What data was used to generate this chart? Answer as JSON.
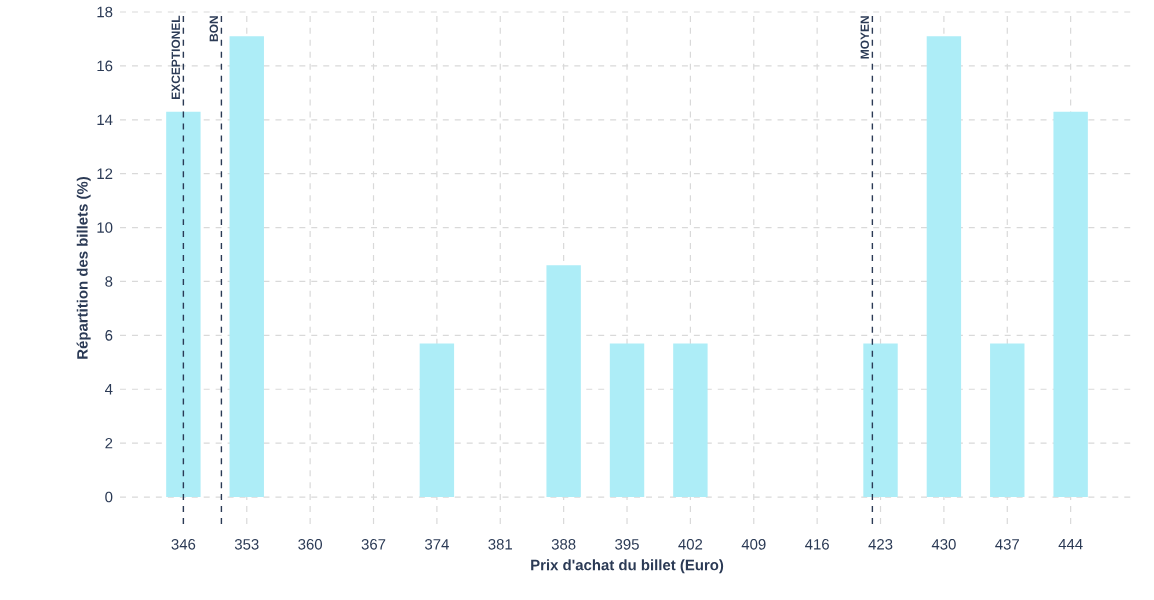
{
  "chart_data": {
    "type": "bar",
    "xlabel": "Prix d'achat du billet (Euro)",
    "ylabel": "Répartition des billets (%)",
    "x": [
      346,
      353,
      360,
      367,
      374,
      381,
      388,
      395,
      402,
      409,
      416,
      423,
      430,
      437,
      444
    ],
    "values": [
      14.3,
      17.1,
      0,
      0,
      5.7,
      0,
      8.6,
      5.7,
      5.7,
      0,
      0,
      5.7,
      17.1,
      5.7,
      14.3
    ],
    "color": "#adedf7",
    "xlim": [
      339,
      451
    ],
    "ylim": [
      -1,
      18
    ],
    "xticks": [
      346,
      353,
      360,
      367,
      374,
      381,
      388,
      395,
      402,
      409,
      416,
      423,
      430,
      437,
      444
    ],
    "yticks": [
      0,
      2,
      4,
      6,
      8,
      10,
      12,
      14,
      16,
      18
    ],
    "grid": true,
    "ref_lines": [
      {
        "axis": "x",
        "value": 346,
        "label": "EXCEPTIONEL",
        "color": "#2b3a55",
        "line_style": "dashed"
      },
      {
        "axis": "x",
        "value": 350.2,
        "label": "BON",
        "color": "#2b3a55",
        "line_style": "dashed"
      },
      {
        "axis": "x",
        "value": 422.1,
        "label": "MOYEN",
        "color": "#2b3a55",
        "line_style": "dashed"
      }
    ]
  }
}
